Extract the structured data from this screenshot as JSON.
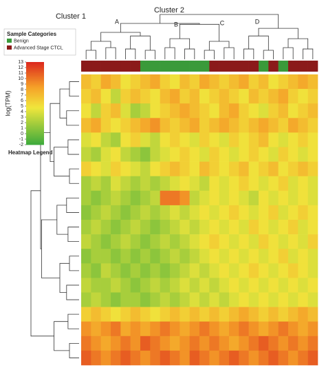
{
  "chart_data": {
    "type": "heatmap",
    "annotations": [
      "Cluster 1",
      "Cluster 2",
      "A",
      "B",
      "C",
      "D"
    ],
    "legend_title": "Sample Categories",
    "series": [
      {
        "name": "Benign",
        "color": "#3a9a3a"
      },
      {
        "name": "Advanced Stage CTCL",
        "color": "#8b1a1a"
      }
    ],
    "column_groups": [
      1,
      1,
      1,
      1,
      1,
      1,
      0,
      0,
      0,
      0,
      0,
      0,
      0,
      1,
      1,
      1,
      1,
      1,
      0,
      1,
      0,
      1,
      1,
      1
    ],
    "colorbar_label": "log(TPM)",
    "colorbar_title": "Heatmap Legend",
    "zlim": [
      -2,
      13
    ],
    "zticks": [
      13,
      12,
      11,
      10,
      9,
      8,
      7,
      6,
      5,
      4,
      3,
      2,
      1,
      0,
      -1,
      -2
    ],
    "values": [
      [
        7,
        6,
        8,
        7,
        5,
        6,
        7,
        8,
        6,
        5,
        7,
        6,
        8,
        7,
        6,
        7,
        8,
        6,
        7,
        5,
        6,
        7,
        8,
        7
      ],
      [
        6,
        7,
        5,
        3,
        6,
        7,
        6,
        5,
        7,
        8,
        6,
        7,
        5,
        6,
        7,
        6,
        5,
        7,
        6,
        7,
        8,
        6,
        5,
        6
      ],
      [
        5,
        3,
        6,
        7,
        4,
        2,
        3,
        5,
        6,
        7,
        8,
        7,
        6,
        5,
        7,
        8,
        6,
        5,
        4,
        6,
        7,
        5,
        6,
        7
      ],
      [
        7,
        8,
        6,
        5,
        6,
        7,
        8,
        9,
        7,
        6,
        7,
        8,
        6,
        7,
        8,
        7,
        6,
        7,
        8,
        7,
        6,
        8,
        7,
        6
      ],
      [
        4,
        5,
        3,
        2,
        5,
        6,
        4,
        3,
        5,
        6,
        5,
        4,
        6,
        5,
        4,
        6,
        5,
        6,
        7,
        5,
        4,
        5,
        6,
        5
      ],
      [
        3,
        2,
        4,
        5,
        3,
        2,
        1,
        3,
        4,
        5,
        6,
        5,
        4,
        6,
        5,
        4,
        5,
        6,
        5,
        4,
        6,
        5,
        4,
        5
      ],
      [
        6,
        5,
        4,
        6,
        5,
        4,
        3,
        5,
        6,
        7,
        6,
        5,
        7,
        6,
        5,
        6,
        7,
        5,
        6,
        7,
        5,
        6,
        7,
        6
      ],
      [
        2,
        3,
        2,
        4,
        3,
        2,
        3,
        2,
        3,
        4,
        5,
        4,
        3,
        5,
        4,
        5,
        6,
        5,
        4,
        5,
        6,
        4,
        5,
        4
      ],
      [
        2,
        1,
        2,
        3,
        2,
        1,
        2,
        3,
        10,
        10,
        9,
        3,
        4,
        5,
        4,
        5,
        4,
        3,
        5,
        4,
        5,
        4,
        5,
        4
      ],
      [
        1,
        2,
        3,
        2,
        1,
        2,
        3,
        2,
        3,
        4,
        3,
        4,
        5,
        4,
        5,
        6,
        5,
        4,
        5,
        6,
        4,
        5,
        6,
        5
      ],
      [
        2,
        3,
        2,
        1,
        2,
        3,
        2,
        1,
        2,
        3,
        4,
        3,
        4,
        5,
        4,
        5,
        4,
        6,
        5,
        4,
        5,
        6,
        4,
        5
      ],
      [
        3,
        2,
        1,
        2,
        3,
        2,
        1,
        2,
        3,
        2,
        3,
        4,
        5,
        6,
        5,
        4,
        5,
        4,
        6,
        5,
        4,
        5,
        4,
        6
      ],
      [
        1,
        2,
        2,
        1,
        2,
        1,
        2,
        1,
        2,
        3,
        2,
        3,
        4,
        5,
        4,
        5,
        4,
        5,
        4,
        5,
        6,
        4,
        5,
        4
      ],
      [
        2,
        1,
        3,
        2,
        1,
        2,
        1,
        2,
        1,
        2,
        3,
        4,
        3,
        4,
        5,
        4,
        5,
        6,
        5,
        4,
        5,
        6,
        5,
        4
      ],
      [
        3,
        2,
        2,
        3,
        2,
        1,
        2,
        3,
        2,
        3,
        4,
        3,
        4,
        3,
        4,
        5,
        4,
        5,
        4,
        5,
        4,
        5,
        4,
        5
      ],
      [
        2,
        3,
        2,
        1,
        2,
        2,
        1,
        2,
        3,
        2,
        3,
        4,
        3,
        4,
        3,
        4,
        5,
        4,
        5,
        4,
        5,
        4,
        5,
        4
      ],
      [
        6,
        7,
        6,
        5,
        6,
        7,
        6,
        5,
        6,
        7,
        6,
        7,
        6,
        7,
        6,
        7,
        8,
        7,
        6,
        7,
        6,
        7,
        8,
        7
      ],
      [
        9,
        8,
        9,
        10,
        8,
        9,
        8,
        9,
        10,
        9,
        8,
        9,
        10,
        9,
        8,
        9,
        10,
        9,
        8,
        9,
        10,
        9,
        8,
        9
      ],
      [
        10,
        9,
        8,
        9,
        10,
        9,
        11,
        10,
        9,
        8,
        9,
        10,
        9,
        10,
        9,
        8,
        9,
        10,
        11,
        10,
        9,
        10,
        9,
        10
      ],
      [
        11,
        10,
        9,
        10,
        11,
        10,
        9,
        10,
        11,
        10,
        9,
        11,
        10,
        9,
        10,
        11,
        10,
        9,
        10,
        11,
        10,
        9,
        10,
        11
      ]
    ]
  }
}
